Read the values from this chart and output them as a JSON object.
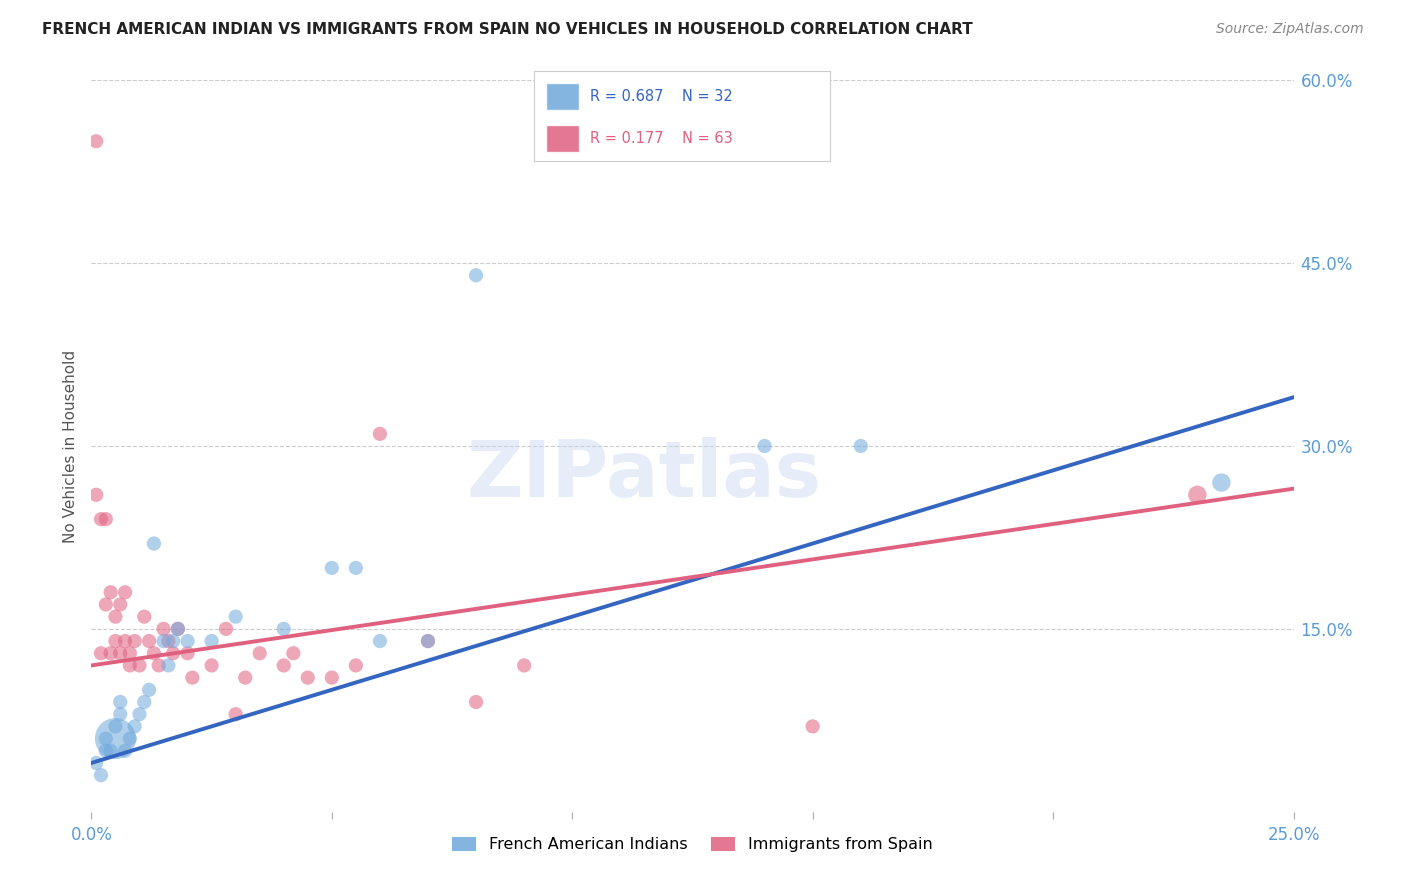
{
  "title": "FRENCH AMERICAN INDIAN VS IMMIGRANTS FROM SPAIN NO VEHICLES IN HOUSEHOLD CORRELATION CHART",
  "source": "Source: ZipAtlas.com",
  "ylabel": "No Vehicles in Household",
  "watermark": "ZIPatlas",
  "xlim": [
    0.0,
    0.25
  ],
  "ylim": [
    0.0,
    0.6
  ],
  "xtick_positions": [
    0.0,
    0.05,
    0.1,
    0.15,
    0.2,
    0.25
  ],
  "xtick_labels": [
    "0.0%",
    "",
    "",
    "",
    "",
    "25.0%"
  ],
  "yticks_right": [
    0.0,
    0.15,
    0.3,
    0.45,
    0.6
  ],
  "ytick_labels_right": [
    "",
    "15.0%",
    "30.0%",
    "45.0%",
    "60.0%"
  ],
  "blue_R": 0.687,
  "blue_N": 32,
  "pink_R": 0.177,
  "pink_N": 63,
  "blue_color": "#6fa8dc",
  "pink_color": "#e06080",
  "blue_line_color": "#3465c0",
  "pink_line_color": "#e06080",
  "blue_scatter": {
    "x": [
      0.001,
      0.002,
      0.003,
      0.003,
      0.004,
      0.005,
      0.005,
      0.006,
      0.006,
      0.007,
      0.008,
      0.009,
      0.01,
      0.011,
      0.012,
      0.013,
      0.015,
      0.016,
      0.017,
      0.018,
      0.02,
      0.025,
      0.03,
      0.04,
      0.05,
      0.055,
      0.06,
      0.07,
      0.08,
      0.14,
      0.16,
      0.235
    ],
    "y": [
      0.04,
      0.03,
      0.05,
      0.06,
      0.05,
      0.06,
      0.07,
      0.08,
      0.09,
      0.05,
      0.06,
      0.07,
      0.08,
      0.09,
      0.1,
      0.22,
      0.14,
      0.12,
      0.14,
      0.15,
      0.14,
      0.14,
      0.16,
      0.15,
      0.2,
      0.2,
      0.14,
      0.14,
      0.44,
      0.3,
      0.3,
      0.27
    ],
    "sizes": [
      30,
      30,
      30,
      30,
      30,
      250,
      30,
      30,
      30,
      30,
      30,
      30,
      30,
      30,
      30,
      30,
      30,
      30,
      30,
      30,
      30,
      30,
      30,
      30,
      30,
      30,
      30,
      30,
      30,
      30,
      30,
      50
    ]
  },
  "pink_scatter": {
    "x": [
      0.001,
      0.001,
      0.002,
      0.002,
      0.003,
      0.003,
      0.004,
      0.004,
      0.005,
      0.005,
      0.006,
      0.006,
      0.007,
      0.007,
      0.008,
      0.008,
      0.009,
      0.01,
      0.011,
      0.012,
      0.013,
      0.014,
      0.015,
      0.016,
      0.017,
      0.018,
      0.02,
      0.021,
      0.025,
      0.028,
      0.03,
      0.032,
      0.035,
      0.04,
      0.042,
      0.045,
      0.05,
      0.055,
      0.06,
      0.07,
      0.08,
      0.09,
      0.15,
      0.23
    ],
    "y": [
      0.55,
      0.26,
      0.24,
      0.13,
      0.24,
      0.17,
      0.13,
      0.18,
      0.16,
      0.14,
      0.17,
      0.13,
      0.18,
      0.14,
      0.13,
      0.12,
      0.14,
      0.12,
      0.16,
      0.14,
      0.13,
      0.12,
      0.15,
      0.14,
      0.13,
      0.15,
      0.13,
      0.11,
      0.12,
      0.15,
      0.08,
      0.11,
      0.13,
      0.12,
      0.13,
      0.11,
      0.11,
      0.12,
      0.31,
      0.14,
      0.09,
      0.12,
      0.07,
      0.26
    ],
    "sizes": [
      30,
      30,
      30,
      30,
      30,
      30,
      30,
      30,
      30,
      30,
      30,
      30,
      30,
      30,
      30,
      30,
      30,
      30,
      30,
      30,
      30,
      30,
      30,
      30,
      30,
      30,
      30,
      30,
      30,
      30,
      30,
      30,
      30,
      30,
      30,
      30,
      30,
      30,
      30,
      30,
      30,
      30,
      30,
      50
    ]
  },
  "blue_line": {
    "x0": 0.0,
    "y0": 0.04,
    "x1": 0.25,
    "y1": 0.34
  },
  "pink_line": {
    "x0": 0.0,
    "y0": 0.12,
    "x1": 0.25,
    "y1": 0.265
  },
  "bottom_legend_blue": "French American Indians",
  "bottom_legend_pink": "Immigrants from Spain",
  "background_color": "#ffffff",
  "grid_color": "#cccccc",
  "title_color": "#222222",
  "ytick_label_color": "#5b9bd5"
}
